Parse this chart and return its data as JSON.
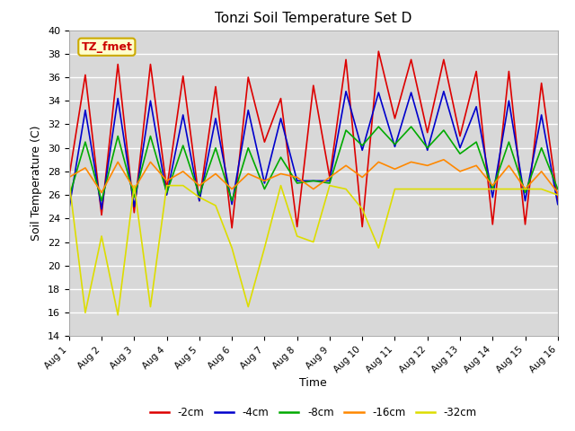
{
  "title": "Tonzi Soil Temperature Set D",
  "xlabel": "Time",
  "ylabel": "Soil Temperature (C)",
  "ylim": [
    14,
    40
  ],
  "background_color": "#d8d8d8",
  "annotation_text": "TZ_fmet",
  "annotation_color": "#cc0000",
  "annotation_bg": "#ffffcc",
  "annotation_border": "#ccaa00",
  "xtick_labels": [
    "Aug 1",
    "Aug 2",
    "Aug 3",
    "Aug 4",
    "Aug 5",
    "Aug 6",
    "Aug 7",
    "Aug 8",
    "Aug 9",
    "Aug 10",
    "Aug 11",
    "Aug 12",
    "Aug 13",
    "Aug 14",
    "Aug 15",
    "Aug 16"
  ],
  "ytick_values": [
    14,
    16,
    18,
    20,
    22,
    24,
    26,
    28,
    30,
    32,
    34,
    36,
    38,
    40
  ],
  "series": {
    "-2cm": {
      "color": "#dd0000",
      "x": [
        0,
        1,
        2,
        3,
        4,
        5,
        6,
        7,
        8,
        9,
        10,
        11,
        12,
        13,
        14,
        15,
        16,
        17,
        18,
        19,
        20,
        21,
        22,
        23,
        24,
        25,
        26,
        27,
        28,
        29,
        30
      ],
      "y": [
        27.5,
        36.2,
        24.3,
        37.1,
        24.5,
        37.1,
        26.5,
        36.1,
        25.5,
        35.2,
        23.2,
        36.0,
        30.5,
        34.2,
        23.3,
        35.3,
        27.5,
        37.5,
        23.3,
        38.2,
        32.5,
        37.5,
        31.3,
        37.5,
        31.0,
        36.5,
        23.5,
        36.5,
        23.5,
        35.5,
        25.5
      ]
    },
    "-4cm": {
      "color": "#0000cc",
      "x": [
        0,
        1,
        2,
        3,
        4,
        5,
        6,
        7,
        8,
        9,
        10,
        11,
        12,
        13,
        14,
        15,
        16,
        17,
        18,
        19,
        20,
        21,
        22,
        23,
        24,
        25,
        26,
        27,
        28,
        29,
        30
      ],
      "y": [
        24.8,
        33.2,
        24.8,
        34.2,
        25.0,
        34.0,
        26.0,
        32.8,
        25.5,
        32.5,
        25.2,
        33.2,
        27.0,
        32.5,
        27.2,
        27.2,
        27.2,
        34.8,
        29.8,
        34.7,
        30.1,
        34.7,
        29.8,
        34.8,
        30.0,
        33.5,
        25.8,
        34.0,
        25.5,
        32.8,
        25.2
      ]
    },
    "-8cm": {
      "color": "#00aa00",
      "x": [
        0,
        1,
        2,
        3,
        4,
        5,
        6,
        7,
        8,
        9,
        10,
        11,
        12,
        13,
        14,
        15,
        16,
        17,
        18,
        19,
        20,
        21,
        22,
        23,
        24,
        25,
        26,
        27,
        28,
        29,
        30
      ],
      "y": [
        25.8,
        30.5,
        25.5,
        31.0,
        25.8,
        31.0,
        26.2,
        30.2,
        26.0,
        30.0,
        25.5,
        30.0,
        26.5,
        29.2,
        27.0,
        27.2,
        27.0,
        31.5,
        30.2,
        31.8,
        30.3,
        31.8,
        30.0,
        31.5,
        29.5,
        30.5,
        26.5,
        30.5,
        26.2,
        30.0,
        26.5
      ]
    },
    "-16cm": {
      "color": "#ff8800",
      "x": [
        0,
        1,
        2,
        3,
        4,
        5,
        6,
        7,
        8,
        9,
        10,
        11,
        12,
        13,
        14,
        15,
        16,
        17,
        18,
        19,
        20,
        21,
        22,
        23,
        24,
        25,
        26,
        27,
        28,
        29,
        30
      ],
      "y": [
        27.5,
        28.3,
        26.2,
        28.8,
        26.5,
        28.8,
        27.2,
        28.0,
        26.8,
        27.8,
        26.5,
        27.8,
        27.2,
        27.8,
        27.5,
        26.5,
        27.5,
        28.5,
        27.5,
        28.8,
        28.2,
        28.8,
        28.5,
        29.0,
        28.0,
        28.5,
        26.8,
        28.5,
        26.5,
        28.0,
        26.2
      ]
    },
    "-32cm": {
      "color": "#dddd00",
      "x": [
        0,
        1,
        2,
        3,
        4,
        5,
        6,
        7,
        8,
        9,
        10,
        11,
        12,
        13,
        14,
        15,
        16,
        17,
        18,
        19,
        20,
        21,
        22,
        23,
        24,
        25,
        26,
        27,
        28,
        29,
        30
      ],
      "y": [
        27.2,
        16.0,
        22.5,
        15.8,
        26.8,
        16.5,
        26.8,
        26.8,
        25.8,
        25.1,
        21.5,
        16.5,
        21.5,
        26.8,
        22.5,
        22.0,
        26.8,
        26.5,
        24.8,
        21.5,
        26.5,
        26.5,
        26.5,
        26.5,
        26.5,
        26.5,
        26.5,
        26.5,
        26.5,
        26.5,
        26.0
      ]
    }
  },
  "legend_entries": [
    "-2cm",
    "-4cm",
    "-8cm",
    "-16cm",
    "-32cm"
  ],
  "legend_colors": [
    "#dd0000",
    "#0000cc",
    "#00aa00",
    "#ff8800",
    "#dddd00"
  ]
}
